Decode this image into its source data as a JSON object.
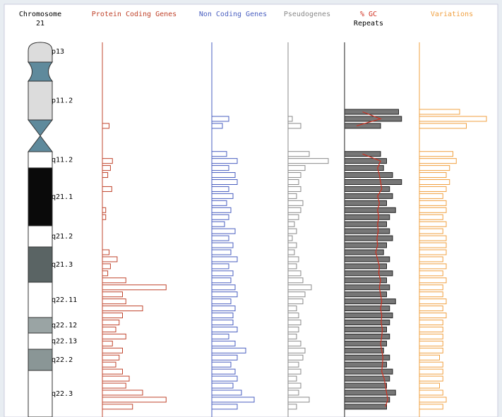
{
  "ideogram": {
    "title": "Chromosome",
    "number": "21",
    "bands": [
      {
        "label": "p13",
        "color": "#dcdcdc"
      },
      {
        "label": null,
        "color": "#5f8a9c"
      },
      {
        "label": "p11.2",
        "color": "#dcdcdc"
      },
      {
        "label": null,
        "color": "#5f8a9c"
      },
      {
        "label": "q11.2",
        "color": "#ffffff"
      },
      {
        "label": "q21.1",
        "color": "#0a0a0a"
      },
      {
        "label": "q21.2",
        "color": "#ffffff"
      },
      {
        "label": "q21.3",
        "color": "#5a6464"
      },
      {
        "label": "q22.11",
        "color": "#ffffff"
      },
      {
        "label": "q22.12",
        "color": "#9aa4a4"
      },
      {
        "label": "q22.13",
        "color": "#ffffff"
      },
      {
        "label": "q22.2",
        "color": "#8a9696"
      },
      {
        "label": "q22.3",
        "color": "#ffffff"
      }
    ]
  },
  "chart_data": {
    "type": "bar",
    "xlim": [
      0,
      100
    ],
    "series": [
      {
        "name": "Protein Coding Genes",
        "color": "#c0442c",
        "values": [
          0,
          0,
          10,
          0,
          0,
          0,
          0,
          15,
          12,
          8,
          0,
          14,
          0,
          0,
          5,
          5,
          0,
          0,
          0,
          0,
          10,
          22,
          12,
          8,
          35,
          95,
          30,
          35,
          60,
          30,
          25,
          20,
          35,
          15,
          30,
          25,
          20,
          30,
          40,
          35,
          60,
          95,
          45
        ]
      },
      {
        "name": "Non Coding Genes",
        "color": "#4a5fc0",
        "values": [
          0,
          40,
          25,
          0,
          0,
          0,
          35,
          60,
          40,
          55,
          60,
          40,
          50,
          35,
          45,
          40,
          30,
          55,
          40,
          50,
          45,
          60,
          40,
          50,
          45,
          55,
          60,
          45,
          55,
          50,
          50,
          60,
          40,
          55,
          80,
          60,
          45,
          55,
          60,
          50,
          70,
          100,
          60
        ]
      },
      {
        "name": "Pseudogenes",
        "color": "#8a8a8a",
        "values": [
          0,
          10,
          30,
          0,
          0,
          0,
          50,
          95,
          40,
          30,
          25,
          30,
          20,
          35,
          30,
          25,
          15,
          20,
          10,
          20,
          15,
          25,
          20,
          30,
          35,
          55,
          40,
          35,
          20,
          25,
          30,
          25,
          20,
          30,
          40,
          35,
          25,
          30,
          20,
          30,
          25,
          50,
          20
        ]
      },
      {
        "name": "% GC",
        "type": "line",
        "color": "#d03020",
        "values": [
          30,
          60,
          20,
          null,
          null,
          null,
          30,
          60,
          55,
          58,
          60,
          62,
          55,
          58,
          55,
          57,
          55,
          56,
          54,
          55,
          52,
          55,
          58,
          57,
          60,
          58,
          60,
          62,
          60,
          62,
          61,
          63,
          62,
          60,
          62,
          64,
          63,
          62,
          66,
          68,
          70,
          72,
          68
        ]
      },
      {
        "name": "Repeats",
        "color": "#222222",
        "values": [
          90,
          95,
          60,
          0,
          0,
          0,
          60,
          70,
          65,
          80,
          95,
          75,
          80,
          70,
          85,
          75,
          70,
          75,
          80,
          70,
          65,
          75,
          70,
          80,
          70,
          75,
          70,
          85,
          75,
          80,
          75,
          70,
          75,
          70,
          65,
          75,
          70,
          80,
          75,
          70,
          85,
          75,
          70
        ]
      },
      {
        "name": "Variations",
        "color": "#f0a040",
        "values": [
          60,
          100,
          70,
          0,
          0,
          0,
          50,
          55,
          45,
          40,
          45,
          40,
          35,
          40,
          40,
          35,
          40,
          35,
          40,
          40,
          40,
          35,
          40,
          35,
          40,
          35,
          35,
          40,
          35,
          40,
          35,
          35,
          35,
          35,
          35,
          30,
          35,
          35,
          35,
          30,
          35,
          40,
          35
        ]
      }
    ]
  }
}
